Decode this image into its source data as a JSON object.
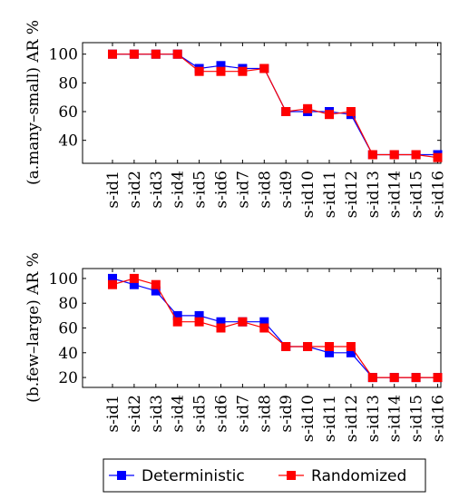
{
  "colors": {
    "deterministic": "#0000ff",
    "randomized": "#ff0000"
  },
  "legend": {
    "deterministic_label": "Deterministic",
    "randomized_label": "Randomized"
  },
  "chart_data": [
    {
      "type": "line",
      "ylabel": "(a.many–small) AR %",
      "categories": [
        "s-id1",
        "s-id2",
        "s-id3",
        "s-id4",
        "s-id5",
        "s-id6",
        "s-id7",
        "s-id8",
        "s-id9",
        "s-id10",
        "s-id11",
        "s-id12",
        "s-id13",
        "s-id14",
        "s-id15",
        "s-id16"
      ],
      "yticks": [
        40,
        60,
        80,
        100
      ],
      "ylim": [
        24,
        108
      ],
      "series": [
        {
          "name": "Deterministic",
          "values": [
            100,
            100,
            100,
            100,
            90,
            92,
            90,
            90,
            60,
            60,
            60,
            58,
            30,
            30,
            30,
            30
          ]
        },
        {
          "name": "Randomized",
          "values": [
            100,
            100,
            100,
            100,
            88,
            88,
            88,
            90,
            60,
            62,
            58,
            60,
            30,
            30,
            30,
            28
          ]
        }
      ]
    },
    {
      "type": "line",
      "ylabel": "(b.few–large) AR %",
      "categories": [
        "s-id1",
        "s-id2",
        "s-id3",
        "s-id4",
        "s-id5",
        "s-id6",
        "s-id7",
        "s-id8",
        "s-id9",
        "s-id10",
        "s-id11",
        "s-id12",
        "s-id13",
        "s-id14",
        "s-id15",
        "s-id16"
      ],
      "yticks": [
        20,
        40,
        60,
        80,
        100
      ],
      "ylim": [
        12,
        108
      ],
      "series": [
        {
          "name": "Deterministic",
          "values": [
            100,
            95,
            90,
            70,
            70,
            65,
            65,
            65,
            45,
            45,
            40,
            40,
            20,
            20,
            20,
            20
          ]
        },
        {
          "name": "Randomized",
          "values": [
            95,
            100,
            95,
            65,
            65,
            60,
            65,
            60,
            45,
            45,
            45,
            45,
            20,
            20,
            20,
            20
          ]
        }
      ]
    }
  ]
}
